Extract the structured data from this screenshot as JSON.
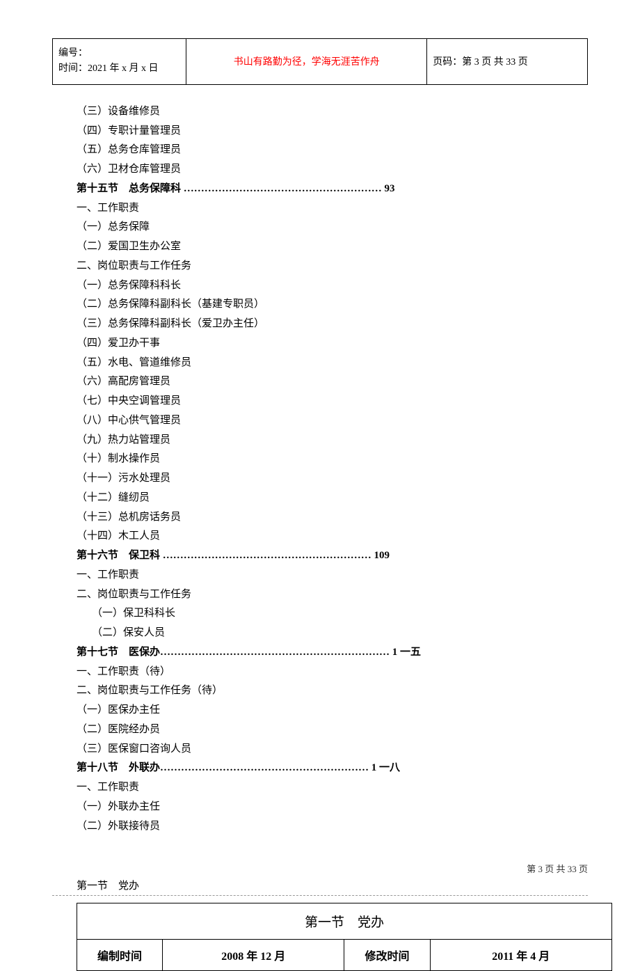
{
  "header": {
    "doc_id_label": "编号：",
    "time_label": "时间：2021 年 x 月 x 日",
    "motto": "书山有路勤为径，学海无涯苦作舟",
    "page_label": "页码：第 3 页 共 33 页"
  },
  "toc": {
    "items_top": [
      "（三）设备维修员",
      "（四）专职计量管理员",
      "（五）总务仓库管理员",
      "（六）卫材仓库管理员"
    ],
    "section15": {
      "title": "第十五节 总务保障科 ………………………………………………… 93",
      "items": [
        "一、工作职责",
        "（一）总务保障",
        "（二）爱国卫生办公室",
        "二、岗位职责与工作任务",
        "（一）总务保障科科长",
        "（二）总务保障科副科长（基建专职员）",
        "（三）总务保障科副科长（爱卫办主任）",
        "（四）爱卫办干事",
        "（五）水电、管道维修员",
        "（六）高配房管理员",
        "（七）中央空调管理员",
        "（八）中心供气管理员",
        "（九）热力站管理员",
        "（十）制水操作员",
        "（十一）污水处理员",
        "（十二）缝纫员",
        "（十三）总机房话务员",
        "（十四）木工人员"
      ]
    },
    "section16": {
      "title": "第十六节 保卫科 …………………………………………………… 109",
      "items": [
        "一、工作职责",
        "二、岗位职责与工作任务"
      ],
      "indented": [
        "（一）保卫科科长",
        "（二）保安人员"
      ]
    },
    "section17": {
      "title": "第十七节 医保办………………………………………………………… 1 一五",
      "items": [
        "一、工作职责（待）",
        "二、岗位职责与工作任务（待）",
        "（一）医保办主任",
        "（二）医院经办员",
        "（三）医保窗口咨询人员"
      ]
    },
    "section18": {
      "title": "第十八节 外联办…………………………………………………… 1 一八",
      "items": [
        "一、工作职责",
        "（一）外联办主任",
        "（二）外联接待员"
      ]
    }
  },
  "section_heading": "第一节 党办",
  "info_table": {
    "title": "第一节 党办",
    "compile_time_label": "编制时间",
    "compile_time_value": "2008 年 12 月",
    "modify_time_label": "修改时间",
    "modify_time_value": "2011 年 4 月"
  },
  "footer": "第 3 页 共 33 页"
}
